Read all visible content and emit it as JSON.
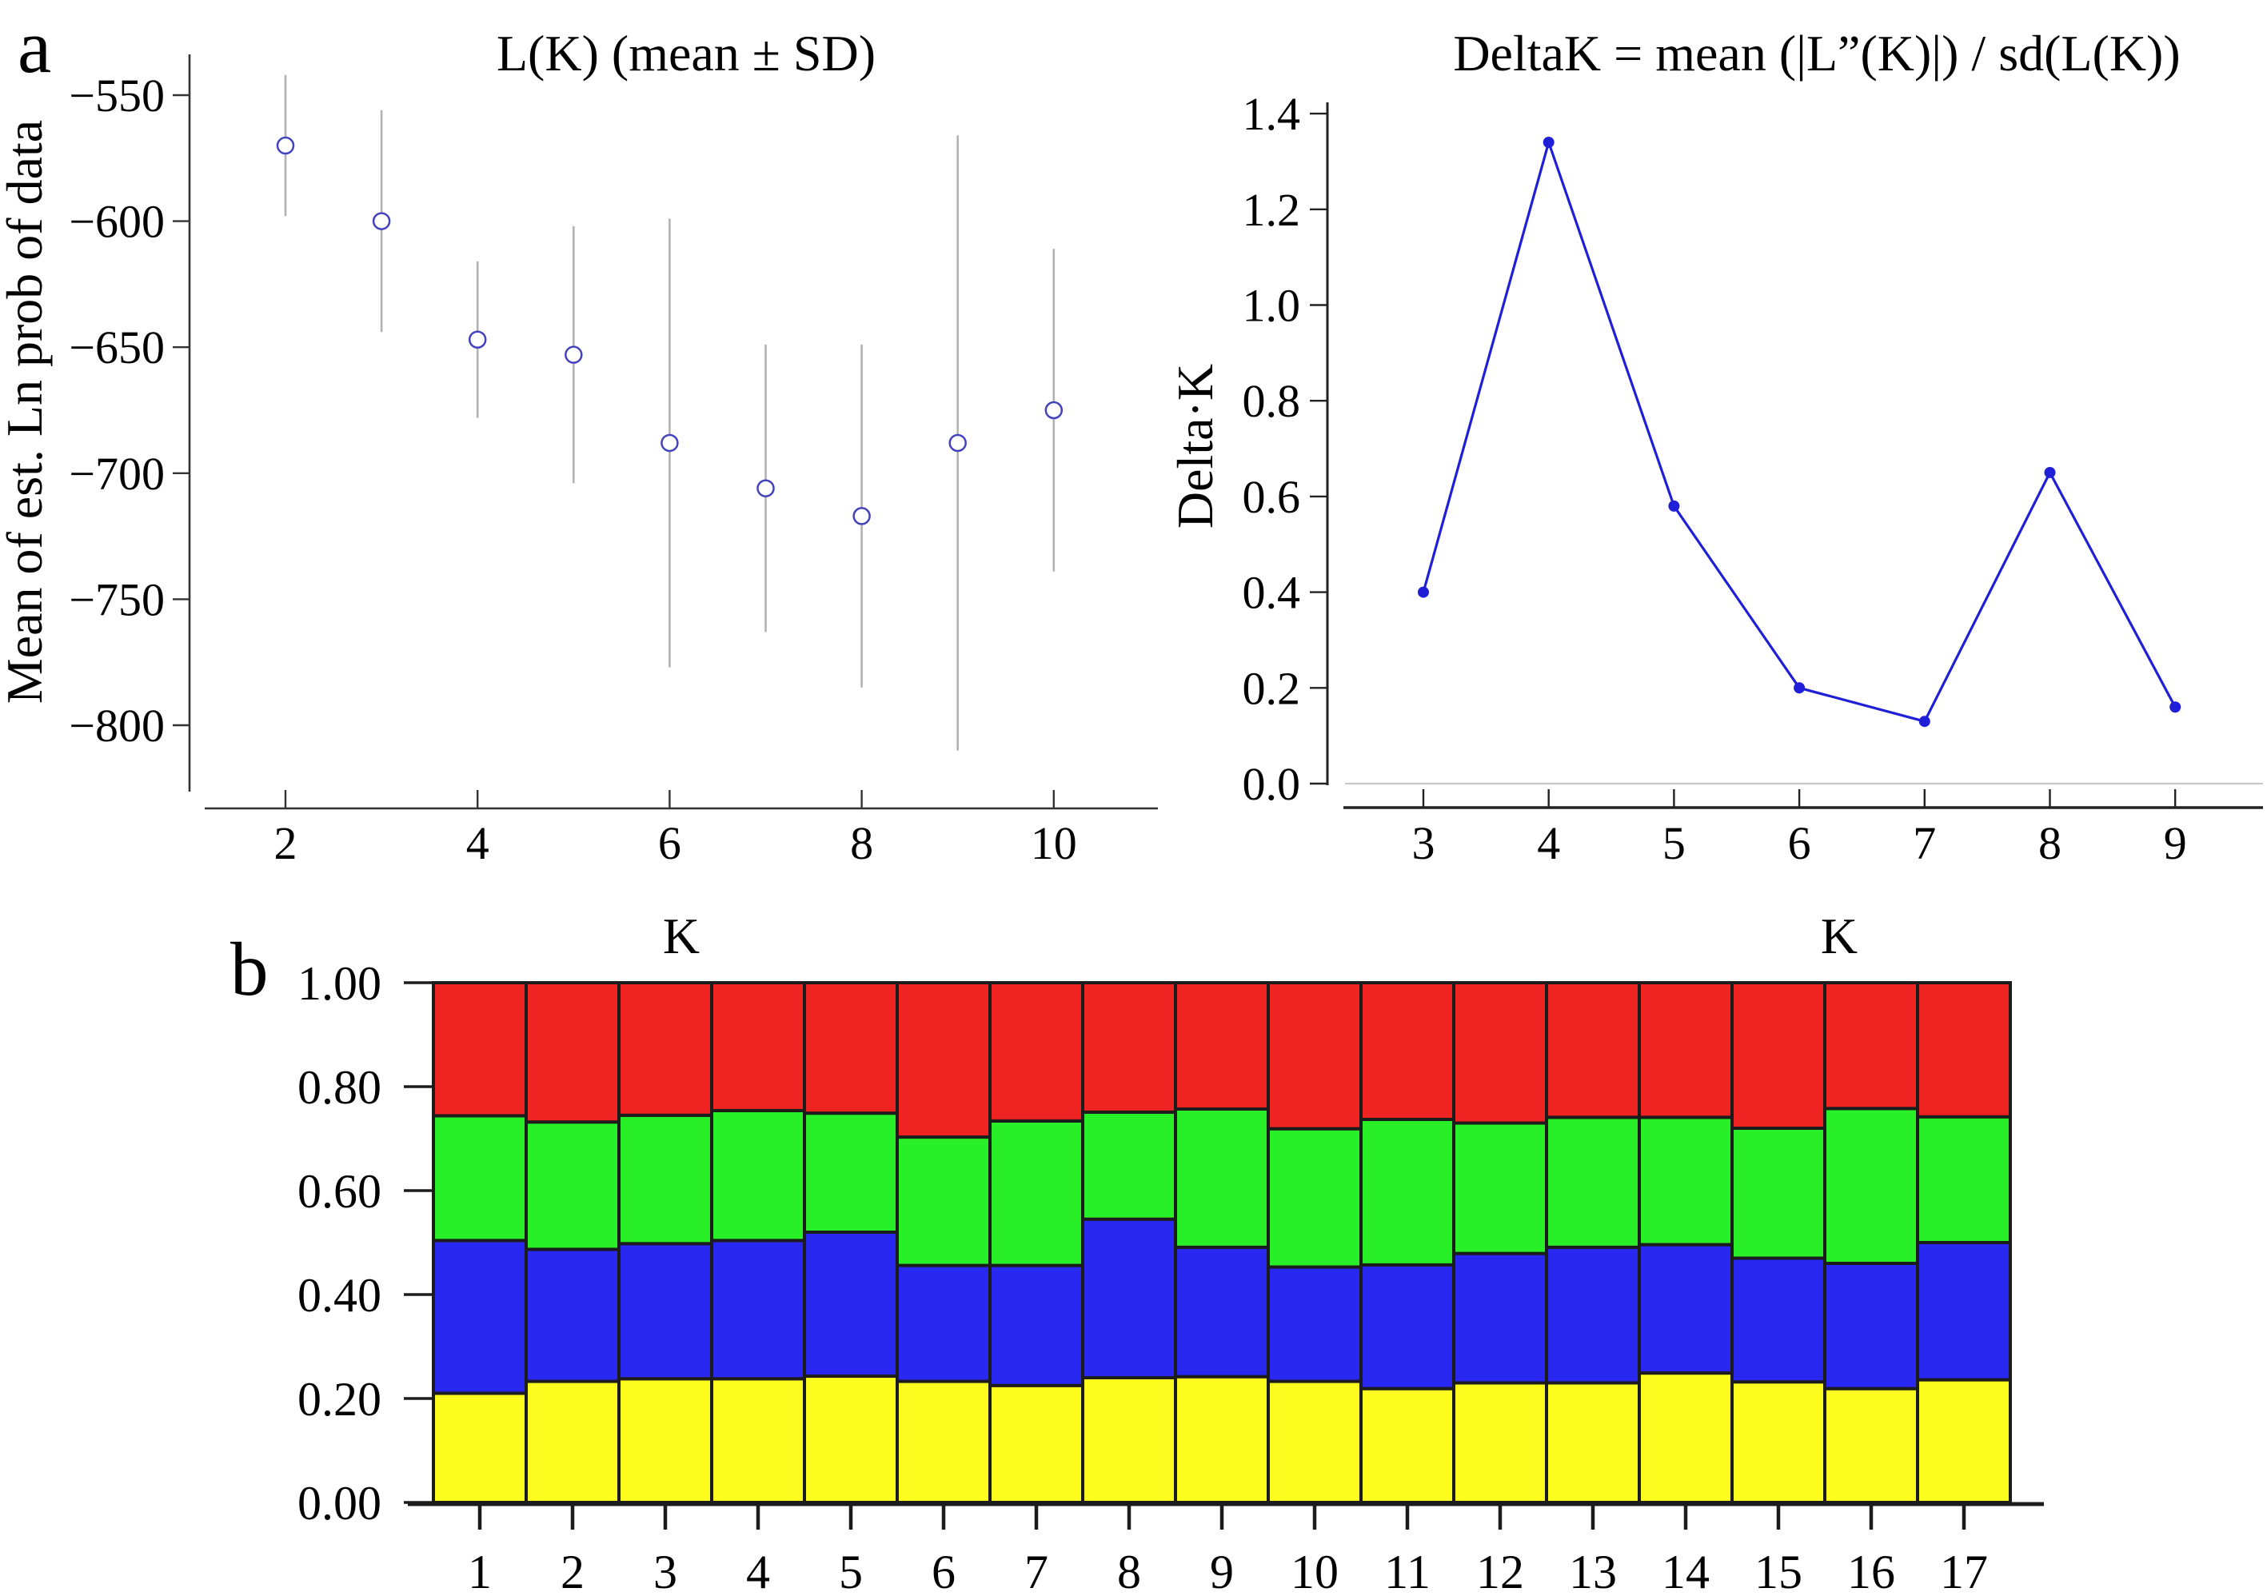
{
  "figure": {
    "panel_a": "a",
    "panel_b": "b",
    "background": "#ffffff"
  },
  "chart_data": [
    {
      "id": "lk",
      "type": "scatter",
      "title": "L(K) (mean ± SD)",
      "xlabel": "K",
      "ylabel": "Mean of est. Ln prob of data",
      "x": [
        2,
        3,
        4,
        5,
        6,
        7,
        8,
        9,
        10
      ],
      "mean": [
        -570,
        -600,
        -647,
        -653,
        -688,
        -706,
        -717,
        -688,
        -675
      ],
      "sd": [
        28,
        44,
        31,
        51,
        89,
        57,
        68,
        122,
        64
      ],
      "x_tick_values": [
        2,
        4,
        6,
        8,
        10
      ],
      "x_tick_labels": [
        "2",
        "4",
        "6",
        "8",
        "10"
      ],
      "y_tick_values": [
        -550,
        -600,
        -650,
        -700,
        -750,
        -800
      ],
      "y_tick_labels": [
        "−550",
        "−600",
        "−650",
        "−700",
        "−750",
        "−800"
      ],
      "xlim": [
        1.2,
        11
      ],
      "ylim": [
        -835,
        -540
      ],
      "grid": false,
      "marker_color": "#4343bd",
      "errorbar_color": "#b2b2b2",
      "axis_color": "#333333"
    },
    {
      "id": "deltak",
      "type": "line",
      "title": "DeltaK = mean (|L”(K)|) / sd(L(K))",
      "xlabel": "K",
      "ylabel": "Delta·K",
      "x": [
        3,
        4,
        5,
        6,
        7,
        8,
        9
      ],
      "y": [
        0.4,
        1.34,
        0.58,
        0.2,
        0.13,
        0.65,
        0.16
      ],
      "x_tick_values": [
        3,
        4,
        5,
        6,
        7,
        8,
        9
      ],
      "x_tick_labels": [
        "3",
        "4",
        "5",
        "6",
        "7",
        "8",
        "9"
      ],
      "y_tick_values": [
        0.0,
        0.2,
        0.4,
        0.6,
        0.8,
        1.0,
        1.2,
        1.4
      ],
      "y_tick_labels": [
        "0.0",
        "0.2",
        "0.4",
        "0.6",
        "0.8",
        "1.0",
        "1.2",
        "1.4"
      ],
      "xlim": [
        2.4,
        9.7
      ],
      "ylim": [
        0,
        1.45
      ],
      "grid": false,
      "zero_gridline": true,
      "line_color": "#1f1fd8",
      "zero_line_color": "#c9c9c9",
      "axis_color": "#222222"
    },
    {
      "id": "structure",
      "type": "stacked-bar",
      "title": "",
      "xlabel": "",
      "ylabel": "",
      "categories": [
        "1",
        "2",
        "3",
        "4",
        "5",
        "6",
        "7",
        "8",
        "9",
        "10",
        "11",
        "12",
        "13",
        "14",
        "15",
        "16",
        "17"
      ],
      "series": [
        {
          "name": "cluster-yellow",
          "color": "#fcfc1e",
          "values": [
            0.21,
            0.233,
            0.238,
            0.238,
            0.243,
            0.233,
            0.225,
            0.24,
            0.242,
            0.233,
            0.219,
            0.23,
            0.23,
            0.249,
            0.232,
            0.219,
            0.236
          ]
        },
        {
          "name": "cluster-blue",
          "color": "#2828f0",
          "values": [
            0.294,
            0.254,
            0.26,
            0.266,
            0.277,
            0.223,
            0.231,
            0.305,
            0.249,
            0.22,
            0.238,
            0.249,
            0.261,
            0.247,
            0.238,
            0.241,
            0.264
          ]
        },
        {
          "name": "cluster-green",
          "color": "#28ef28",
          "values": [
            0.24,
            0.245,
            0.247,
            0.25,
            0.229,
            0.247,
            0.278,
            0.206,
            0.266,
            0.266,
            0.28,
            0.251,
            0.25,
            0.245,
            0.25,
            0.298,
            0.242
          ]
        },
        {
          "name": "cluster-red",
          "color": "#f02323",
          "values": [
            0.256,
            0.268,
            0.255,
            0.246,
            0.251,
            0.297,
            0.266,
            0.249,
            0.243,
            0.281,
            0.263,
            0.27,
            0.259,
            0.259,
            0.28,
            0.242,
            0.258
          ]
        }
      ],
      "y_tick_values": [
        0,
        0.2,
        0.4,
        0.6,
        0.8,
        1.0
      ],
      "y_tick_labels": [
        "0.00",
        "0.20",
        "0.40",
        "0.60",
        "0.80",
        "1.00"
      ],
      "ylim": [
        0,
        1
      ],
      "grid": false,
      "border_color": "#1c1c1c"
    }
  ]
}
